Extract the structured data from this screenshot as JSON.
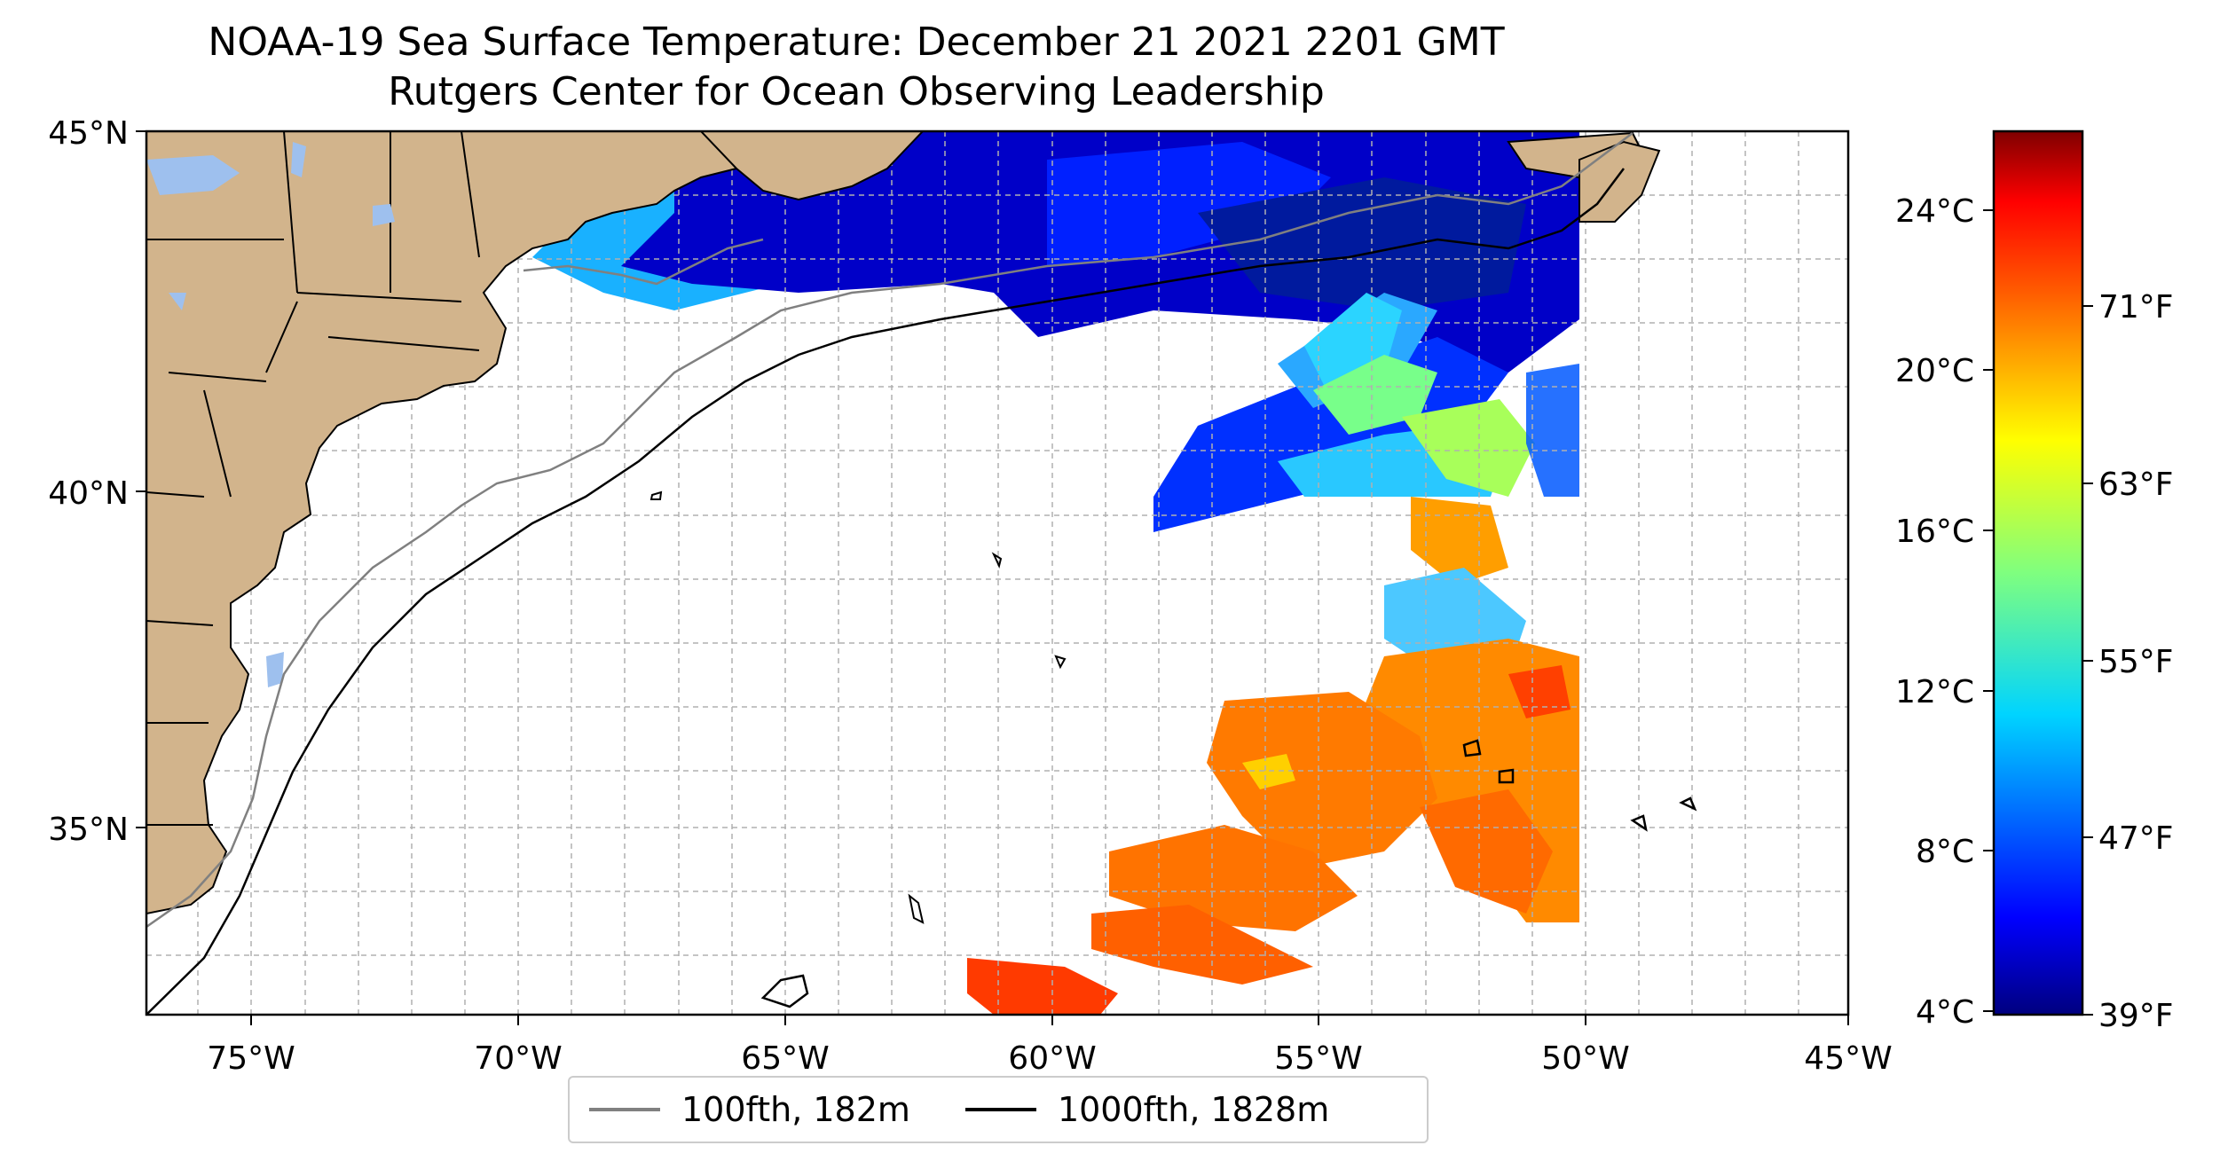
{
  "title": {
    "line1": "NOAA-19 Sea Surface Temperature: December 21 2021 2201 GMT",
    "line2": "Rutgers Center for Ocean Observing Leadership"
  },
  "map": {
    "lon_range": [
      -77,
      -45
    ],
    "lat_range": [
      32.5,
      45
    ],
    "lon_ticks": [
      "75°W",
      "70°W",
      "65°W",
      "60°W",
      "55°W",
      "50°W",
      "45°W"
    ],
    "lat_ticks": [
      "45°N",
      "40°N",
      "35°N"
    ],
    "grid": true,
    "land_color": "#d2b48c",
    "water_body_color": "#9ec0ee",
    "sst_regions": [
      "Gulf of Maine and Scotian Shelf: dark blue (about 4–8 °C)",
      "Central area near 55°W 40°N: light blue to green and yellow (about 10–18 °C)",
      "Southeast area 50–60°W, 33–38°N: orange and red (about 20–23 °C)"
    ]
  },
  "colorbar": {
    "colormap": "jet",
    "celsius_ticks": [
      "24°C",
      "20°C",
      "16°C",
      "12°C",
      "8°C",
      "4°C"
    ],
    "fahrenheit_ticks": [
      "71°F",
      "63°F",
      "55°F",
      "47°F",
      "39°F"
    ],
    "colors": [
      "#00007f",
      "#0000ff",
      "#007fff",
      "#00ffff",
      "#7fff7f",
      "#ffff00",
      "#ff7f00",
      "#ff0000",
      "#7f0000"
    ]
  },
  "legend": {
    "entries": [
      {
        "label": "100fth, 182m",
        "color": "#808080"
      },
      {
        "label": "1000fth, 1828m",
        "color": "#000000"
      }
    ]
  }
}
